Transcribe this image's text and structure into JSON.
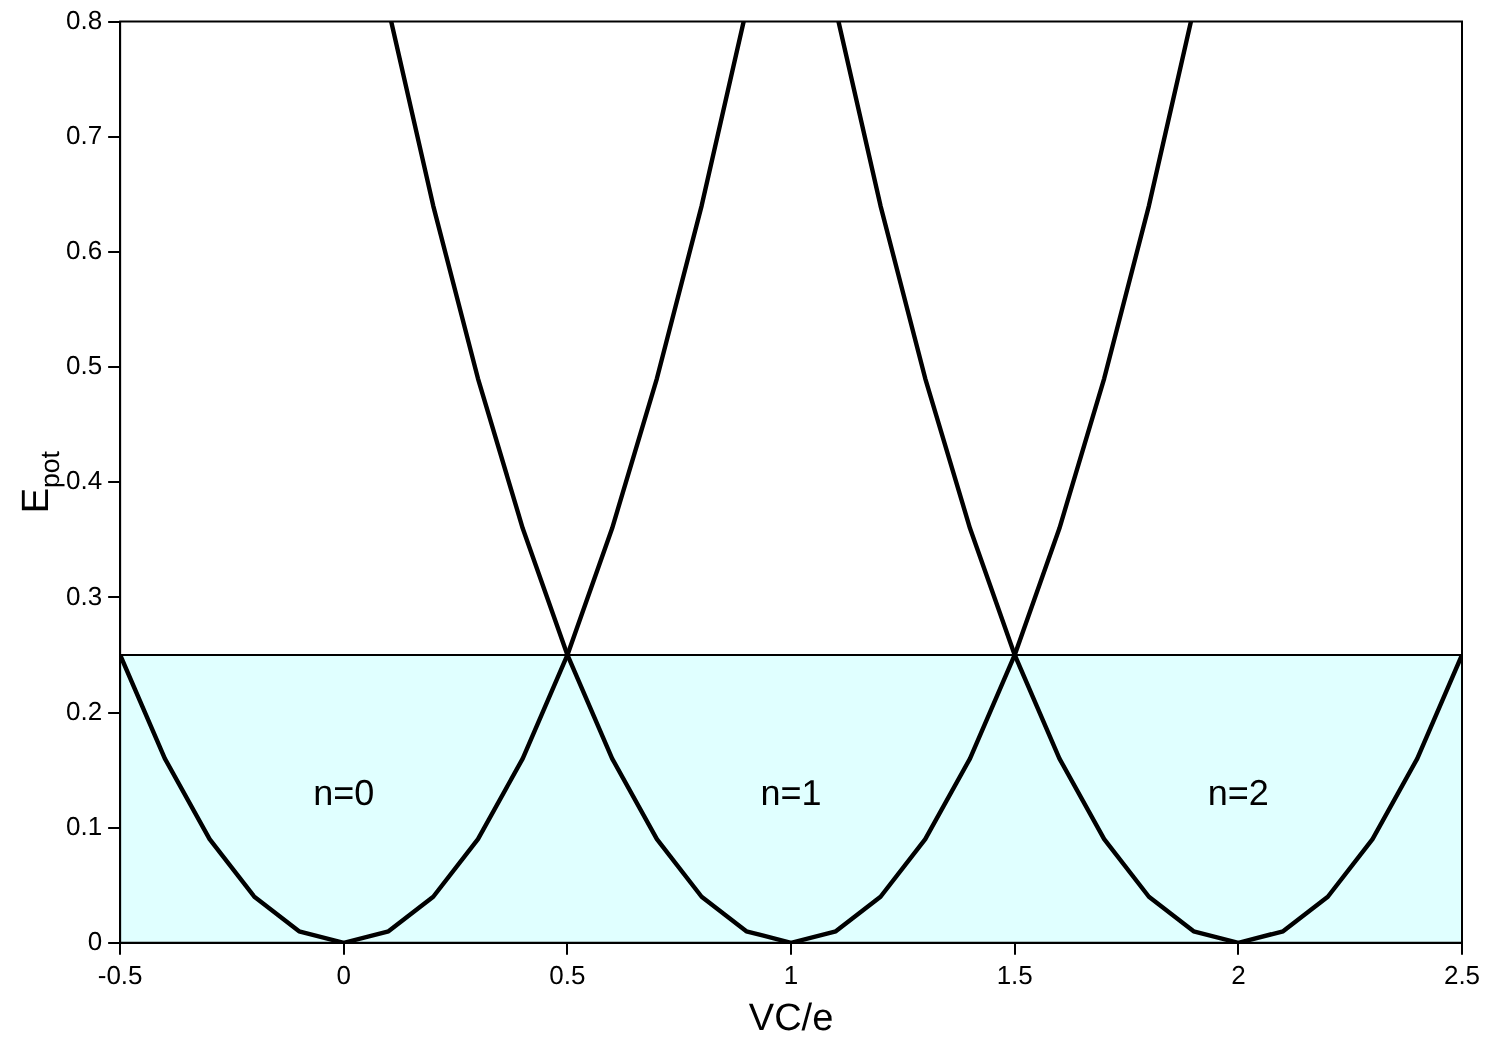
{
  "chart_data": {
    "type": "line",
    "xlabel": "VC/e",
    "ylabel": "E$_{pot}$",
    "xlim": [
      -0.5,
      2.5
    ],
    "xticks": [
      -0.5,
      0,
      0.5,
      1,
      1.5,
      2,
      2.5
    ],
    "ylim": [
      0,
      0.8
    ],
    "yticks": [
      0,
      0.1,
      0.2,
      0.3,
      0.4,
      0.5,
      0.6,
      0.7,
      0.8
    ],
    "grid": false,
    "legend": false,
    "marker": "none",
    "line_style": "solid",
    "series": [
      {
        "color": "#000000",
        "x": [
          -0.5,
          -0.4,
          -0.3,
          -0.2,
          -0.1,
          0,
          0.1,
          0.2,
          0.3,
          0.4,
          0.5,
          0.6,
          0.7,
          0.8,
          0.894
        ],
        "values": [
          0.25,
          0.16,
          0.09,
          0.04,
          0.01,
          0,
          0.01,
          0.04,
          0.09,
          0.16,
          0.25,
          0.36,
          0.49,
          0.64,
          0.8
        ]
      },
      {
        "color": "#000000",
        "x": [
          0.106,
          0.2,
          0.3,
          0.4,
          0.5,
          0.6,
          0.7,
          0.8,
          0.9,
          1,
          1.1,
          1.2,
          1.3,
          1.4,
          1.5,
          1.6,
          1.7,
          1.8,
          1.894
        ],
        "values": [
          0.8,
          0.64,
          0.49,
          0.36,
          0.25,
          0.16,
          0.09,
          0.04,
          0.01,
          0,
          0.01,
          0.04,
          0.09,
          0.16,
          0.25,
          0.36,
          0.49,
          0.64,
          0.8
        ]
      },
      {
        "color": "#000000",
        "x": [
          1.106,
          1.2,
          1.3,
          1.4,
          1.5,
          1.6,
          1.7,
          1.8,
          1.9,
          2,
          2.1,
          2.2,
          2.3,
          2.4,
          2.5
        ],
        "values": [
          0.8,
          0.64,
          0.49,
          0.36,
          0.25,
          0.16,
          0.09,
          0.04,
          0.01,
          0,
          0.01,
          0.04,
          0.09,
          0.16,
          0.25
        ]
      }
    ],
    "bands": [
      {
        "axis": "y",
        "from": 0,
        "to": 0.25,
        "color": "#e0ffff"
      }
    ],
    "ref_lines": [
      {
        "axis": "y",
        "value": 0.25,
        "color": "#000000"
      }
    ],
    "annotations": [
      "n=0",
      "n=1",
      "n=2"
    ]
  }
}
